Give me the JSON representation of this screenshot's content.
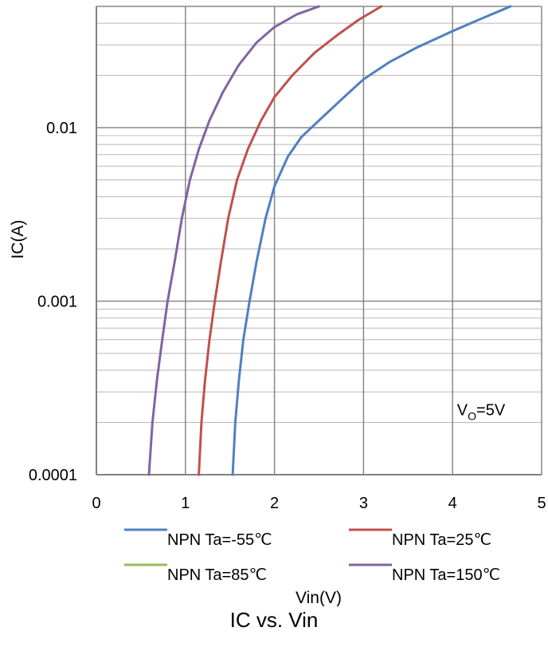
{
  "caption": "IC vs. Vin",
  "annotation": {
    "base": "V",
    "sub": "O",
    "rest": "=5V",
    "x": 4.05,
    "y": 0.00022
  },
  "chart_data": {
    "type": "line",
    "xlabel": "Vin(V)",
    "ylabel": "IC(A)",
    "xlim": [
      0,
      5
    ],
    "ylim": [
      0.0001,
      0.05
    ],
    "yscale": "log",
    "grid": true,
    "legend_position": "bottom",
    "x_ticks": [
      "0",
      "1",
      "2",
      "3",
      "4",
      "5"
    ],
    "y_ticks": [
      "0.0001",
      "0.001",
      "0.01"
    ],
    "series": [
      {
        "name": "NPN Ta=-55℃",
        "color": "#4F81BD",
        "x": [
          1.53,
          1.56,
          1.6,
          1.65,
          1.72,
          1.8,
          1.9,
          2.0,
          2.15,
          2.3,
          2.5,
          2.75,
          3.0,
          3.3,
          3.6,
          4.0,
          4.3,
          4.65
        ],
        "y": [
          0.0001,
          0.0002,
          0.00035,
          0.0006,
          0.001,
          0.0017,
          0.003,
          0.0046,
          0.0068,
          0.0088,
          0.011,
          0.0145,
          0.019,
          0.024,
          0.029,
          0.036,
          0.042,
          0.05
        ]
      },
      {
        "name": "NPN Ta=25℃",
        "color": "#C0504D",
        "x": [
          1.15,
          1.18,
          1.22,
          1.27,
          1.33,
          1.4,
          1.48,
          1.58,
          1.7,
          1.85,
          2.0,
          2.2,
          2.45,
          2.7,
          2.95,
          3.2
        ],
        "y": [
          0.0001,
          0.0002,
          0.00035,
          0.0006,
          0.001,
          0.0017,
          0.003,
          0.005,
          0.0075,
          0.011,
          0.015,
          0.02,
          0.027,
          0.034,
          0.042,
          0.05
        ]
      },
      {
        "name": "NPN Ta=85℃",
        "color": "#9BBB59",
        "x": [],
        "y": []
      },
      {
        "name": "NPN Ta=150℃",
        "color": "#8064A2",
        "x": [
          0.59,
          0.63,
          0.68,
          0.74,
          0.8,
          0.88,
          0.96,
          1.05,
          1.15,
          1.27,
          1.42,
          1.6,
          1.8,
          2.0,
          2.25,
          2.5
        ],
        "y": [
          0.0001,
          0.0002,
          0.00035,
          0.0006,
          0.001,
          0.0017,
          0.003,
          0.005,
          0.0075,
          0.011,
          0.016,
          0.023,
          0.031,
          0.038,
          0.045,
          0.05
        ]
      }
    ]
  }
}
